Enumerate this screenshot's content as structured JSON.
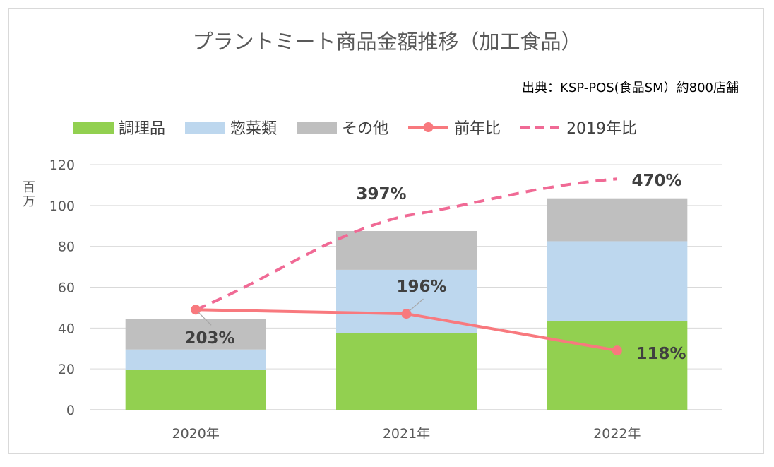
{
  "title": "プラントミート商品金額推移（加工食品）",
  "source": "出典：KSP-POS(食品SM）約800店舗",
  "ylabel_unit": "百万",
  "legend": {
    "cooked": "調理品",
    "deli": "惣菜類",
    "other": "その他",
    "yoy": "前年比",
    "vs2019": "2019年比"
  },
  "colors": {
    "cooked": "#92d050",
    "deli": "#bdd7ee",
    "other": "#bfbfbf",
    "yoy": "#f8797e",
    "vs2019": "#f06a95",
    "grid": "#d9d9d9",
    "axis_text": "#595959",
    "label_text": "#404040"
  },
  "chart_data": {
    "type": "bar",
    "stacked": true,
    "title": "プラントミート商品金額推移（加工食品）",
    "categories": [
      "2020年",
      "2021年",
      "2022年"
    ],
    "ylim": [
      0,
      120
    ],
    "yticks": [
      0,
      20,
      40,
      60,
      80,
      100,
      120
    ],
    "ylabel": "百万",
    "grid": true,
    "legend_position": "top",
    "series": [
      {
        "name": "調理品",
        "values": [
          19.5,
          37.5,
          43.5
        ]
      },
      {
        "name": "惣菜類",
        "values": [
          10,
          31,
          39
        ]
      },
      {
        "name": "その他",
        "values": [
          15,
          19,
          21
        ]
      }
    ],
    "lines": [
      {
        "name": "前年比",
        "style": "solid",
        "y_positions": [
          49,
          47,
          29
        ],
        "labels": [
          "203%",
          "196%",
          "118%"
        ]
      },
      {
        "name": "2019年比",
        "style": "dashed",
        "y_positions": [
          49,
          95,
          113
        ],
        "labels": [
          "",
          "397%",
          "470%"
        ]
      }
    ]
  }
}
